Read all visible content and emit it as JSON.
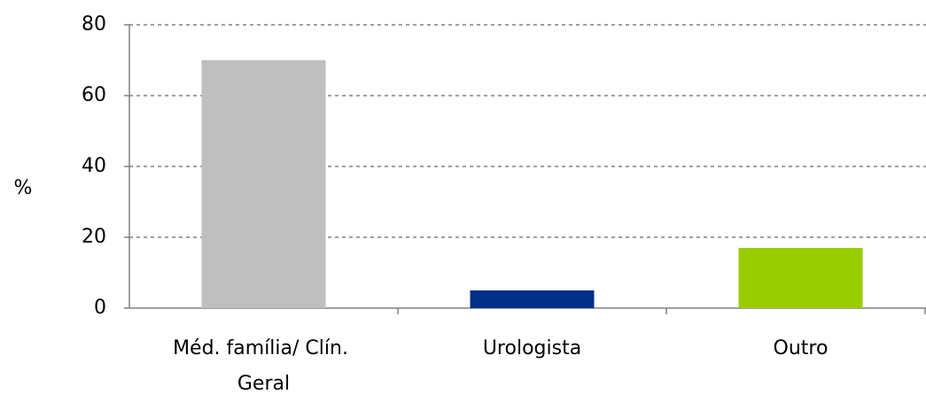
{
  "chart_data": {
    "type": "bar",
    "y_label": "%",
    "categories": [
      "Méd. família/ Clín. Geral",
      "Urologista",
      "Outro"
    ],
    "values": [
      70,
      5,
      17
    ],
    "colors": [
      "#bfbfbf",
      "#003087",
      "#99cc00"
    ],
    "ylim": [
      0,
      80
    ],
    "yticks": [
      0,
      20,
      40,
      60,
      80
    ],
    "grid": true
  }
}
